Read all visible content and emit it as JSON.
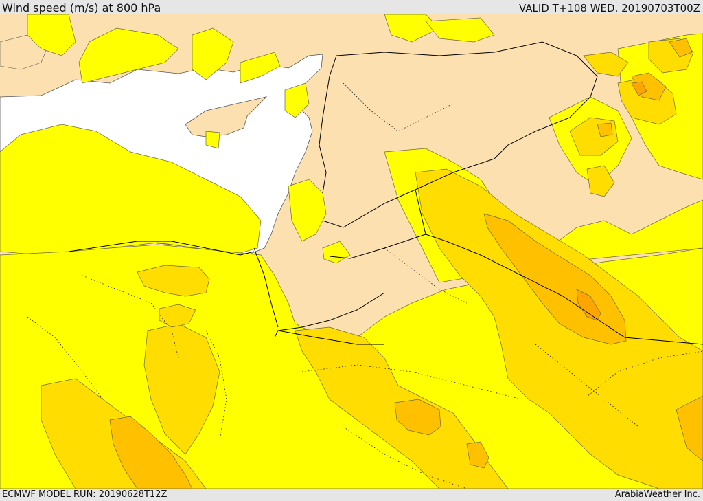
{
  "header": {
    "title": "Wind speed (m/s) at 800 hPa",
    "valid": "VALID T+108 WED. 20190703T00Z"
  },
  "footer": {
    "model_run": "ECMWF MODEL RUN: 20190628T12Z",
    "credit": "ArabiaWeather Inc."
  },
  "colors": {
    "sea": "#ffffff",
    "calm_land": "#fde0b0",
    "level_1": "#ffff00",
    "level_2": "#ffdd00",
    "level_3": "#ffc000",
    "level_4": "#ffa500",
    "contour": "#6a6a40",
    "border": "#000000"
  }
}
